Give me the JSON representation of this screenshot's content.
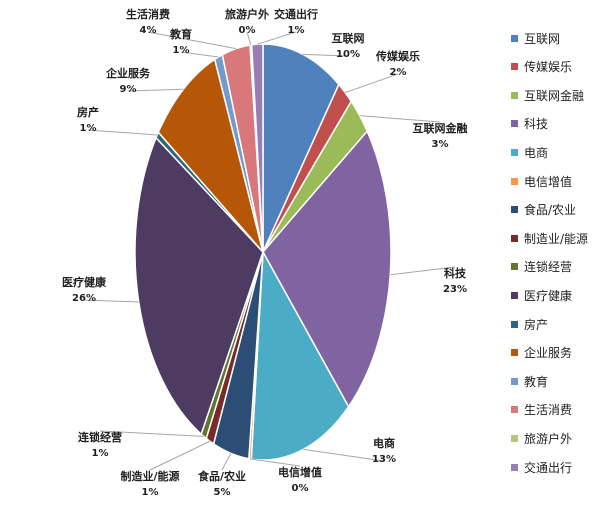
{
  "chart_data": {
    "type": "pie",
    "slices": [
      {
        "label": "互联网",
        "value_label": "10%",
        "value": 10,
        "color": "#4f81bd"
      },
      {
        "label": "传媒娱乐",
        "value_label": "2%",
        "value": 2,
        "color": "#c0504d"
      },
      {
        "label": "互联网金融",
        "value_label": "3%",
        "value": 3,
        "color": "#9bbb59"
      },
      {
        "label": "科技",
        "value_label": "23%",
        "value": 23,
        "color": "#8064a2"
      },
      {
        "label": "电商",
        "value_label": "13%",
        "value": 13,
        "color": "#4bacc6"
      },
      {
        "label": "电信增值",
        "value_label": "0%",
        "value": 0.3,
        "color": "#f79646"
      },
      {
        "label": "食品/农业",
        "value_label": "5%",
        "value": 4.5,
        "color": "#2c4d75"
      },
      {
        "label": "制造业/能源",
        "value_label": "1%",
        "value": 1,
        "color": "#772c2a"
      },
      {
        "label": "连锁经营",
        "value_label": "1%",
        "value": 0.7,
        "color": "#5f7530"
      },
      {
        "label": "医疗健康",
        "value_label": "26%",
        "value": 26,
        "color": "#4d3b62"
      },
      {
        "label": "房产",
        "value_label": "1%",
        "value": 0.5,
        "color": "#276a7c"
      },
      {
        "label": "企业服务",
        "value_label": "9%",
        "value": 9,
        "color": "#b65708"
      },
      {
        "label": "教育",
        "value_label": "1%",
        "value": 1,
        "color": "#729aca"
      },
      {
        "label": "生活消费",
        "value_label": "4%",
        "value": 3.5,
        "color": "#d9787a"
      },
      {
        "label": "旅游户外",
        "value_label": "0%",
        "value": 0.2,
        "color": "#afc97a"
      },
      {
        "label": "交通出行",
        "value_label": "1%",
        "value": 1.4,
        "color": "#977fb6"
      }
    ],
    "legend_position": "right"
  }
}
